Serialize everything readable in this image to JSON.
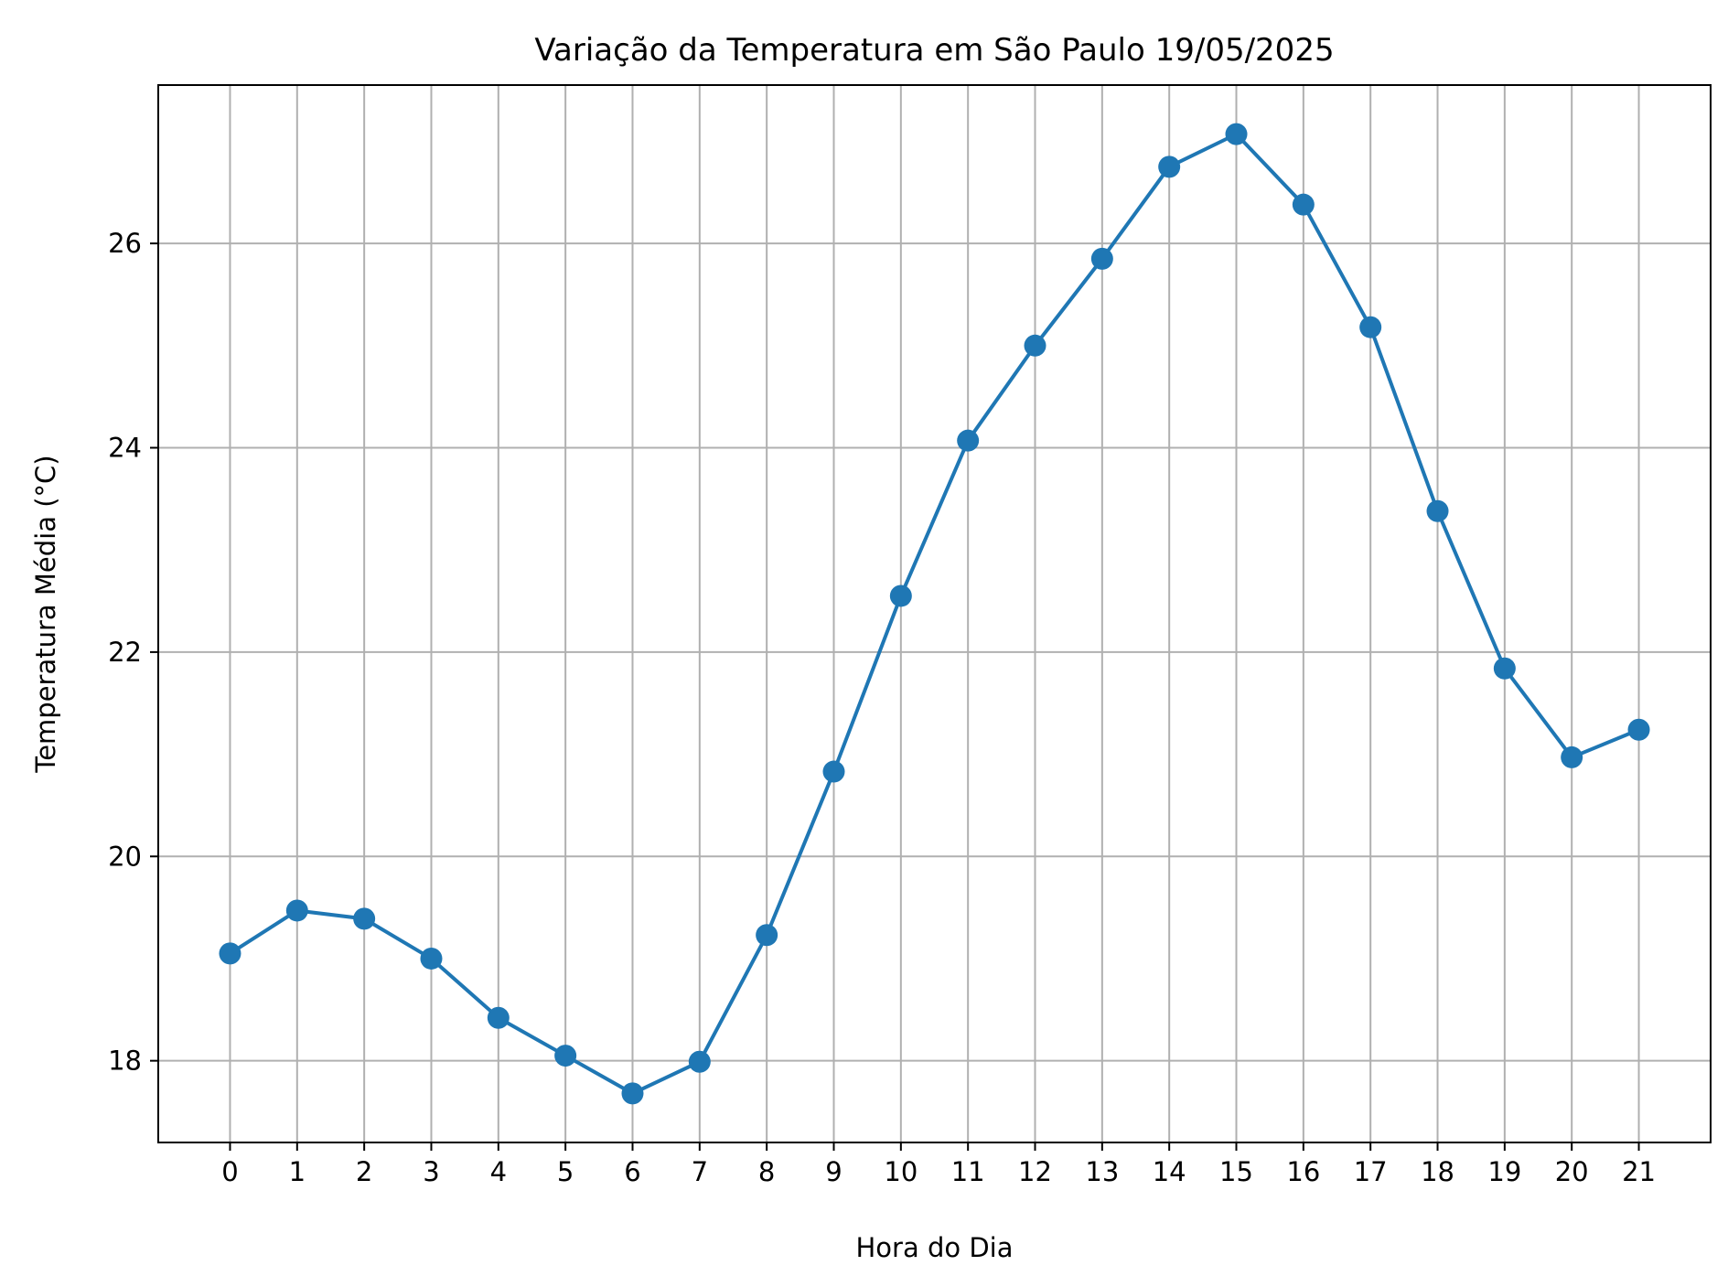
{
  "chart_data": {
    "type": "line",
    "title": "Variação da Temperatura em São Paulo 19/05/2025",
    "xlabel": "Hora do Dia",
    "ylabel": "Temperatura Média (°C)",
    "x": [
      0,
      1,
      2,
      3,
      4,
      5,
      6,
      7,
      8,
      9,
      10,
      11,
      12,
      13,
      14,
      15,
      16,
      17,
      18,
      19,
      20,
      21
    ],
    "x_tick_labels": [
      "0",
      "1",
      "2",
      "3",
      "4",
      "5",
      "6",
      "7",
      "8",
      "9",
      "10",
      "11",
      "12",
      "13",
      "14",
      "15",
      "16",
      "17",
      "18",
      "19",
      "20",
      "21"
    ],
    "y_ticks": [
      18,
      20,
      22,
      24,
      26
    ],
    "y_tick_labels": [
      "18",
      "20",
      "22",
      "24",
      "26"
    ],
    "xlim": [
      -1.07,
      22.07
    ],
    "ylim": [
      17.2,
      27.55
    ],
    "grid": true,
    "series": [
      {
        "color": "#1f77b4",
        "marker": "circle",
        "values": [
          19.05,
          19.47,
          19.39,
          19.0,
          18.42,
          18.05,
          17.68,
          17.99,
          19.23,
          20.83,
          22.55,
          24.07,
          25.0,
          25.85,
          26.75,
          27.07,
          26.38,
          25.18,
          23.38,
          21.84,
          20.97,
          21.24
        ]
      }
    ]
  }
}
